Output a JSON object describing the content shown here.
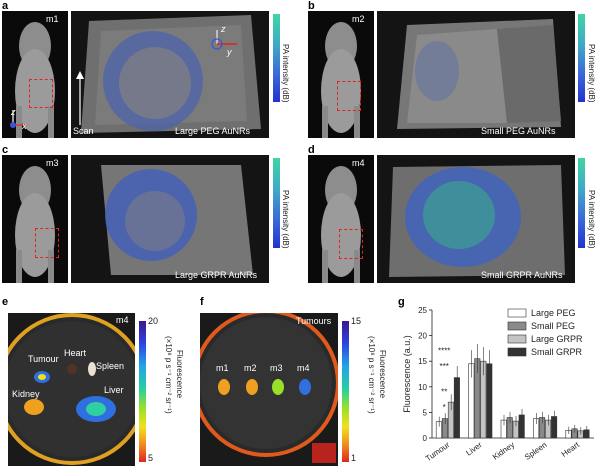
{
  "panels": {
    "a": {
      "letter": "a",
      "mouse": "m1",
      "caption": "Large PEG AuNRs",
      "scan": "Scan",
      "axis_z": "z",
      "axis_x": "x",
      "axis_y": "y"
    },
    "b": {
      "letter": "b",
      "mouse": "m2",
      "caption": "Small PEG AuNRs"
    },
    "c": {
      "letter": "c",
      "mouse": "m3",
      "caption": "Large GRPR AuNRs"
    },
    "d": {
      "letter": "d",
      "mouse": "m4",
      "caption": "Small GRPR AuNRs"
    },
    "e": {
      "letter": "e",
      "mouse": "m4",
      "organs": {
        "tumour": "Tumour",
        "heart": "Heart",
        "spleen": "Spleen",
        "kidney": "Kidney",
        "liver": "Liver"
      }
    },
    "f": {
      "letter": "f",
      "title": "Tumours",
      "mice": [
        "m1",
        "m2",
        "m3",
        "m4"
      ]
    },
    "g": {
      "letter": "g"
    }
  },
  "pa_colorbar_label": "PA intensity (dB)",
  "fluor_colorbar": {
    "label_line1": "Fluorescence",
    "label_line2": "(×10⁸ p s⁻¹ cm⁻² sr⁻¹)",
    "e_max": "20",
    "e_min": "5",
    "f_max": "15",
    "f_min": "1"
  },
  "colors": {
    "red_box": "#e3241b",
    "pa_top": "#3dd6a0",
    "pa_bottom": "#2233d0"
  },
  "chart_data": {
    "type": "bar",
    "title": "",
    "xlabel": "",
    "ylabel": "Fluorescence (a.u.)",
    "ylim": [
      0,
      25
    ],
    "yticks": [
      "0",
      "5",
      "10",
      "15",
      "20",
      "25"
    ],
    "categories": [
      "Tumour",
      "Liver",
      "Kidney",
      "Spleen",
      "Heart"
    ],
    "series": [
      {
        "name": "Large PEG",
        "color": "#ffffff",
        "values": [
          3.2,
          14.5,
          3.5,
          3.8,
          1.5
        ]
      },
      {
        "name": "Small PEG",
        "color": "#8a8a8a",
        "values": [
          3.8,
          15.5,
          4.0,
          4.0,
          1.8
        ]
      },
      {
        "name": "Large GRPR",
        "color": "#c4c4c4",
        "values": [
          7.0,
          15.0,
          3.3,
          3.5,
          1.4
        ]
      },
      {
        "name": "Small GRPR",
        "color": "#333333",
        "values": [
          11.8,
          14.5,
          4.5,
          4.2,
          1.6
        ]
      }
    ],
    "significance": [
      "*",
      "**",
      "***",
      "****"
    ]
  }
}
